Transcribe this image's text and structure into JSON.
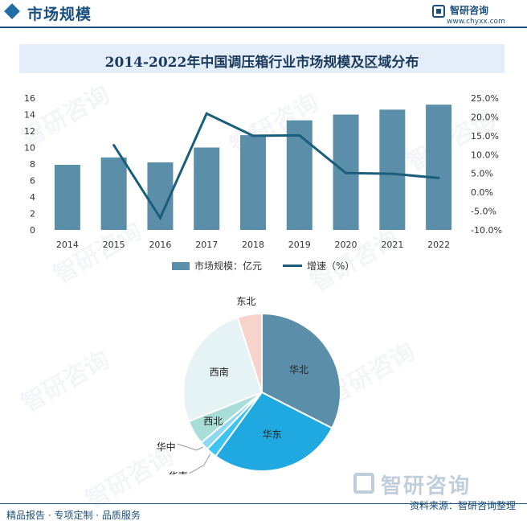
{
  "header": {
    "section_title": "市场规模",
    "logo_name": "智研咨询",
    "logo_url": "www.chyxx.com"
  },
  "chart_title": "2014-2022年中国调压箱行业市场规模及区域分布",
  "legend": {
    "bar_label": "市场规模：亿元",
    "line_label": "增速（%）"
  },
  "footer": {
    "left": "精品报告 · 专项定制 · 品质服务",
    "source": "资料来源：智研咨询整理",
    "big_logo": "智研咨询"
  },
  "watermark": "智研咨询",
  "colors": {
    "bar": "#5b8ea8",
    "line": "#1a5e7c",
    "title_bg": "#e4eef8",
    "brand": "#1b4f7e"
  },
  "chart_data": [
    {
      "type": "bar",
      "categories": [
        "2014",
        "2015",
        "2016",
        "2017",
        "2018",
        "2019",
        "2020",
        "2021",
        "2022"
      ],
      "series": [
        {
          "name": "市场规模：亿元",
          "type": "bar",
          "axis": "left",
          "values": [
            7.9,
            8.8,
            8.2,
            10.0,
            11.5,
            13.3,
            14.0,
            14.6,
            15.2
          ]
        },
        {
          "name": "增速（%）",
          "type": "line",
          "axis": "right",
          "values": [
            null,
            12.5,
            -6.8,
            20.9,
            15.0,
            15.1,
            5.1,
            4.9,
            3.8
          ]
        }
      ],
      "y_left": {
        "lim": [
          0,
          16
        ],
        "ticks": [
          "0",
          "2",
          "4",
          "6",
          "8",
          "10",
          "12",
          "14",
          "16"
        ]
      },
      "y_right": {
        "lim": [
          -10,
          25
        ],
        "ticks": [
          "-10.0%",
          "-5.0%",
          "0.0%",
          "5.0%",
          "10.0%",
          "15.0%",
          "20.0%",
          "25.0%"
        ]
      },
      "grid": false,
      "legend_position": "bottom"
    },
    {
      "type": "pie",
      "labels": [
        "华北",
        "华东",
        "华南",
        "华中",
        "西北",
        "西南",
        "东北"
      ],
      "values": [
        32.5,
        27.5,
        2.2,
        1.8,
        5.0,
        26.0,
        5.0
      ],
      "colors": [
        "#5b8ea8",
        "#20a8e0",
        "#3dc4f0",
        "#8fd8f2",
        "#a9ddd8",
        "#e6f3f4",
        "#f7d3cb"
      ]
    }
  ]
}
